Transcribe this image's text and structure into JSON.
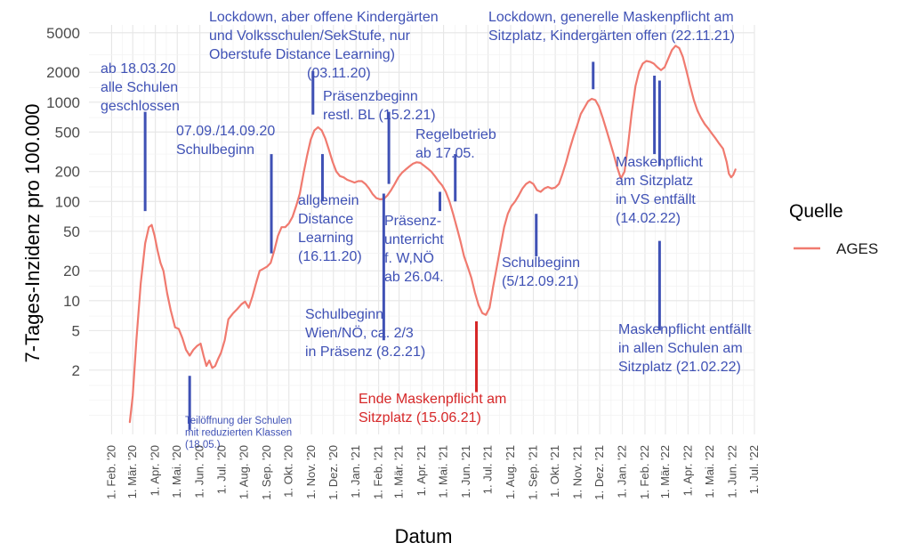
{
  "chart_data": {
    "type": "line",
    "xlabel": "Datum",
    "ylabel": "7-Tages-Inzidenz pro 100.000",
    "y_scale": "log",
    "ylim": [
      0.45,
      6000
    ],
    "xlim": [
      "2020-01-01",
      "2022-07-01"
    ],
    "grid": true,
    "legend": {
      "title": "Quelle",
      "position": "right",
      "entries": [
        "AGES"
      ]
    },
    "y_ticks": [
      {
        "v": 2,
        "label": "2"
      },
      {
        "v": 5,
        "label": "5"
      },
      {
        "v": 10,
        "label": "10"
      },
      {
        "v": 20,
        "label": "20"
      },
      {
        "v": 50,
        "label": "50"
      },
      {
        "v": 100,
        "label": "100"
      },
      {
        "v": 200,
        "label": "200"
      },
      {
        "v": 500,
        "label": "500"
      },
      {
        "v": 1000,
        "label": "1000"
      },
      {
        "v": 2000,
        "label": "2000"
      },
      {
        "v": 5000,
        "label": "5000"
      }
    ],
    "x_ticks": [
      {
        "d": "2020-02-01",
        "label": "1. Feb. '20"
      },
      {
        "d": "2020-03-01",
        "label": "1. Mär. '20"
      },
      {
        "d": "2020-04-01",
        "label": "1. Apr. '20"
      },
      {
        "d": "2020-05-01",
        "label": "1. Mai. '20"
      },
      {
        "d": "2020-06-01",
        "label": "1. Jun. '20"
      },
      {
        "d": "2020-07-01",
        "label": "1. Jul. '20"
      },
      {
        "d": "2020-08-01",
        "label": "1. Aug. '20"
      },
      {
        "d": "2020-09-01",
        "label": "1. Sep. '20"
      },
      {
        "d": "2020-10-01",
        "label": "1. Okt. '20"
      },
      {
        "d": "2020-11-01",
        "label": "1. Nov. '20"
      },
      {
        "d": "2020-12-01",
        "label": "1. Dez. '20"
      },
      {
        "d": "2021-01-01",
        "label": "1. Jan. '21"
      },
      {
        "d": "2021-02-01",
        "label": "1. Feb. '21"
      },
      {
        "d": "2021-03-01",
        "label": "1. Mär. '21"
      },
      {
        "d": "2021-04-01",
        "label": "1. Apr. '21"
      },
      {
        "d": "2021-05-01",
        "label": "1. Mai. '21"
      },
      {
        "d": "2021-06-01",
        "label": "1. Jun. '21"
      },
      {
        "d": "2021-07-01",
        "label": "1. Jul. '21"
      },
      {
        "d": "2021-08-01",
        "label": "1. Aug. '21"
      },
      {
        "d": "2021-09-01",
        "label": "1. Sep. '21"
      },
      {
        "d": "2021-10-01",
        "label": "1. Okt. '21"
      },
      {
        "d": "2021-11-01",
        "label": "1. Nov. '21"
      },
      {
        "d": "2021-12-01",
        "label": "1. Dez. '21"
      },
      {
        "d": "2022-01-01",
        "label": "1. Jan. '22"
      },
      {
        "d": "2022-02-01",
        "label": "1. Feb. '22"
      },
      {
        "d": "2022-03-01",
        "label": "1. Mär. '22"
      },
      {
        "d": "2022-04-01",
        "label": "1. Apr. '22"
      },
      {
        "d": "2022-05-01",
        "label": "1. Mai. '22"
      },
      {
        "d": "2022-06-01",
        "label": "1. Jun. '22"
      },
      {
        "d": "2022-07-01",
        "label": "1. Jul. '22"
      }
    ],
    "series": [
      {
        "name": "AGES",
        "color": "#F07A6F",
        "points": [
          [
            "2020-02-26",
            0.6
          ],
          [
            "2020-03-01",
            1.1
          ],
          [
            "2020-03-06",
            4
          ],
          [
            "2020-03-12",
            15
          ],
          [
            "2020-03-18",
            38
          ],
          [
            "2020-03-23",
            55
          ],
          [
            "2020-03-27",
            58
          ],
          [
            "2020-03-31",
            45
          ],
          [
            "2020-04-04",
            32
          ],
          [
            "2020-04-08",
            24
          ],
          [
            "2020-04-12",
            20
          ],
          [
            "2020-04-17",
            12
          ],
          [
            "2020-04-22",
            8
          ],
          [
            "2020-04-28",
            5.4
          ],
          [
            "2020-05-03",
            5.2
          ],
          [
            "2020-05-08",
            4.2
          ],
          [
            "2020-05-13",
            3.2
          ],
          [
            "2020-05-18",
            2.8
          ],
          [
            "2020-05-23",
            3.2
          ],
          [
            "2020-05-28",
            3.5
          ],
          [
            "2020-06-02",
            3.7
          ],
          [
            "2020-06-06",
            2.8
          ],
          [
            "2020-06-10",
            2.2
          ],
          [
            "2020-06-14",
            2.5
          ],
          [
            "2020-06-18",
            2.1
          ],
          [
            "2020-06-22",
            2.2
          ],
          [
            "2020-06-26",
            2.6
          ],
          [
            "2020-06-30",
            3.0
          ],
          [
            "2020-07-05",
            4.0
          ],
          [
            "2020-07-10",
            6.5
          ],
          [
            "2020-07-16",
            7.4
          ],
          [
            "2020-07-22",
            8.2
          ],
          [
            "2020-07-28",
            9.2
          ],
          [
            "2020-08-02",
            9.8
          ],
          [
            "2020-08-07",
            8.5
          ],
          [
            "2020-08-12",
            11
          ],
          [
            "2020-08-17",
            15
          ],
          [
            "2020-08-22",
            20
          ],
          [
            "2020-08-27",
            21
          ],
          [
            "2020-09-01",
            22
          ],
          [
            "2020-09-06",
            24
          ],
          [
            "2020-09-11",
            32
          ],
          [
            "2020-09-16",
            45
          ],
          [
            "2020-09-21",
            55
          ],
          [
            "2020-09-26",
            55
          ],
          [
            "2020-10-01",
            60
          ],
          [
            "2020-10-06",
            70
          ],
          [
            "2020-10-11",
            90
          ],
          [
            "2020-10-16",
            120
          ],
          [
            "2020-10-21",
            190
          ],
          [
            "2020-10-26",
            290
          ],
          [
            "2020-10-31",
            420
          ],
          [
            "2020-11-05",
            520
          ],
          [
            "2020-11-10",
            560
          ],
          [
            "2020-11-15",
            520
          ],
          [
            "2020-11-20",
            430
          ],
          [
            "2020-11-25",
            330
          ],
          [
            "2020-11-30",
            250
          ],
          [
            "2020-12-05",
            200
          ],
          [
            "2020-12-10",
            180
          ],
          [
            "2020-12-15",
            175
          ],
          [
            "2020-12-20",
            165
          ],
          [
            "2020-12-25",
            160
          ],
          [
            "2020-12-30",
            155
          ],
          [
            "2021-01-04",
            160
          ],
          [
            "2021-01-09",
            160
          ],
          [
            "2021-01-14",
            150
          ],
          [
            "2021-01-19",
            135
          ],
          [
            "2021-01-24",
            118
          ],
          [
            "2021-01-29",
            108
          ],
          [
            "2021-02-03",
            105
          ],
          [
            "2021-02-08",
            106
          ],
          [
            "2021-02-13",
            115
          ],
          [
            "2021-02-18",
            130
          ],
          [
            "2021-02-23",
            150
          ],
          [
            "2021-02-28",
            175
          ],
          [
            "2021-03-05",
            195
          ],
          [
            "2021-03-10",
            210
          ],
          [
            "2021-03-15",
            225
          ],
          [
            "2021-03-20",
            240
          ],
          [
            "2021-03-25",
            248
          ],
          [
            "2021-03-30",
            245
          ],
          [
            "2021-04-04",
            230
          ],
          [
            "2021-04-09",
            215
          ],
          [
            "2021-04-14",
            200
          ],
          [
            "2021-04-19",
            180
          ],
          [
            "2021-04-24",
            160
          ],
          [
            "2021-04-29",
            145
          ],
          [
            "2021-05-04",
            125
          ],
          [
            "2021-05-09",
            100
          ],
          [
            "2021-05-14",
            75
          ],
          [
            "2021-05-19",
            55
          ],
          [
            "2021-05-24",
            40
          ],
          [
            "2021-05-29",
            28
          ],
          [
            "2021-06-03",
            22
          ],
          [
            "2021-06-08",
            17
          ],
          [
            "2021-06-13",
            12
          ],
          [
            "2021-06-18",
            9
          ],
          [
            "2021-06-23",
            7.5
          ],
          [
            "2021-06-28",
            7.2
          ],
          [
            "2021-07-03",
            8.5
          ],
          [
            "2021-07-08",
            14
          ],
          [
            "2021-07-13",
            22
          ],
          [
            "2021-07-18",
            35
          ],
          [
            "2021-07-23",
            55
          ],
          [
            "2021-07-28",
            75
          ],
          [
            "2021-08-02",
            90
          ],
          [
            "2021-08-07",
            100
          ],
          [
            "2021-08-12",
            115
          ],
          [
            "2021-08-17",
            135
          ],
          [
            "2021-08-22",
            150
          ],
          [
            "2021-08-27",
            158
          ],
          [
            "2021-09-01",
            150
          ],
          [
            "2021-09-06",
            130
          ],
          [
            "2021-09-11",
            125
          ],
          [
            "2021-09-16",
            135
          ],
          [
            "2021-09-21",
            140
          ],
          [
            "2021-09-26",
            135
          ],
          [
            "2021-10-01",
            138
          ],
          [
            "2021-10-06",
            150
          ],
          [
            "2021-10-11",
            190
          ],
          [
            "2021-10-16",
            250
          ],
          [
            "2021-10-21",
            340
          ],
          [
            "2021-10-26",
            450
          ],
          [
            "2021-10-31",
            580
          ],
          [
            "2021-11-05",
            760
          ],
          [
            "2021-11-10",
            880
          ],
          [
            "2021-11-15",
            1020
          ],
          [
            "2021-11-20",
            1080
          ],
          [
            "2021-11-25",
            1050
          ],
          [
            "2021-11-30",
            900
          ],
          [
            "2021-12-05",
            700
          ],
          [
            "2021-12-10",
            530
          ],
          [
            "2021-12-15",
            400
          ],
          [
            "2021-12-20",
            300
          ],
          [
            "2021-12-25",
            220
          ],
          [
            "2021-12-30",
            170
          ],
          [
            "2022-01-04",
            200
          ],
          [
            "2022-01-09",
            380
          ],
          [
            "2022-01-14",
            800
          ],
          [
            "2022-01-19",
            1450
          ],
          [
            "2022-01-24",
            2050
          ],
          [
            "2022-01-29",
            2450
          ],
          [
            "2022-02-03",
            2600
          ],
          [
            "2022-02-08",
            2550
          ],
          [
            "2022-02-13",
            2450
          ],
          [
            "2022-02-18",
            2250
          ],
          [
            "2022-02-23",
            2100
          ],
          [
            "2022-02-28",
            2250
          ],
          [
            "2022-03-05",
            2750
          ],
          [
            "2022-03-10",
            3350
          ],
          [
            "2022-03-15",
            3700
          ],
          [
            "2022-03-20",
            3500
          ],
          [
            "2022-03-25",
            2850
          ],
          [
            "2022-03-30",
            2050
          ],
          [
            "2022-04-04",
            1450
          ],
          [
            "2022-04-09",
            1050
          ],
          [
            "2022-04-14",
            820
          ],
          [
            "2022-04-19",
            690
          ],
          [
            "2022-04-24",
            600
          ],
          [
            "2022-04-29",
            540
          ],
          [
            "2022-05-04",
            480
          ],
          [
            "2022-05-09",
            430
          ],
          [
            "2022-05-14",
            380
          ],
          [
            "2022-05-19",
            340
          ],
          [
            "2022-05-24",
            250
          ],
          [
            "2022-05-27",
            190
          ],
          [
            "2022-05-30",
            175
          ],
          [
            "2022-06-02",
            185
          ],
          [
            "2022-06-05",
            210
          ]
        ]
      }
    ],
    "annotations": [
      {
        "kind": "segment",
        "x": "2020-03-18",
        "y1": 80,
        "y2": 800,
        "color": "#3F51B5"
      },
      {
        "kind": "segment",
        "x": "2020-05-18",
        "y1": 0.5,
        "y2": 1.75,
        "color": "#3F51B5"
      },
      {
        "kind": "segment",
        "x": "2020-09-07",
        "y1": 30,
        "y2": 300,
        "color": "#3F51B5"
      },
      {
        "kind": "segment",
        "x": "2020-11-03",
        "y1": 750,
        "y2": 2050,
        "color": "#3F51B5"
      },
      {
        "kind": "segment",
        "x": "2020-11-16",
        "y1": 100,
        "y2": 300,
        "color": "#3F51B5"
      },
      {
        "kind": "segment",
        "x": "2021-02-08",
        "y1": 4,
        "y2": 120,
        "color": "#3F51B5"
      },
      {
        "kind": "segment",
        "x": "2021-02-15",
        "y1": 150,
        "y2": 800,
        "color": "#3F51B5"
      },
      {
        "kind": "segment",
        "x": "2021-04-26",
        "y1": 80,
        "y2": 125,
        "color": "#3F51B5"
      },
      {
        "kind": "segment",
        "x": "2021-05-17",
        "y1": 100,
        "y2": 300,
        "color": "#3F51B5"
      },
      {
        "kind": "segment",
        "x": "2021-06-15",
        "y1": 1.2,
        "y2": 6.2,
        "color": "#D62728"
      },
      {
        "kind": "segment",
        "x": "2021-09-05",
        "y1": 28,
        "y2": 75,
        "color": "#3F51B5"
      },
      {
        "kind": "segment",
        "x": "2021-11-22",
        "y1": 1350,
        "y2": 2550,
        "color": "#3F51B5"
      },
      {
        "kind": "segment",
        "x": "2022-02-14",
        "y1": 300,
        "y2": 1850,
        "color": "#3F51B5"
      },
      {
        "kind": "segment",
        "x": "2022-02-21",
        "y1": 5,
        "y2": 40,
        "color": "#3F51B5"
      },
      {
        "kind": "segment",
        "x": "2022-02-21",
        "y1": 230,
        "y2": 1650,
        "color": "#3F51B5"
      },
      {
        "kind": "text",
        "color": "#3F51B5",
        "lines": [
          "ab 18.03.20",
          "alle Schulen",
          "geschlossen"
        ]
      },
      {
        "kind": "text",
        "color": "#3F51B5",
        "small": true,
        "lines": [
          "Teilöffnung der Schulen",
          "mit reduzierten Klassen",
          "(18.05.)"
        ]
      },
      {
        "kind": "text",
        "color": "#3F51B5",
        "lines": [
          "07.09./14.09.20",
          "Schulbeginn"
        ]
      },
      {
        "kind": "text",
        "color": "#3F51B5",
        "lines": [
          "Lockdown, aber offene Kindergärten",
          "und Volksschulen/SekStufe, nur",
          "Oberstufe Distance Learning)",
          "(03.11.20)"
        ]
      },
      {
        "kind": "text",
        "color": "#3F51B5",
        "lines": [
          "allgemein",
          "Distance",
          "Learning",
          "(16.11.20)"
        ]
      },
      {
        "kind": "text",
        "color": "#3F51B5",
        "lines": [
          "Präsenzbeginn",
          "restl. BL (15.2.21)"
        ]
      },
      {
        "kind": "text",
        "color": "#3F51B5",
        "lines": [
          "Regelbetrieb",
          "ab 17.05."
        ]
      },
      {
        "kind": "text",
        "color": "#3F51B5",
        "lines": [
          "Präsenz-",
          "unterricht",
          "f. W,NÖ",
          "ab 26.04."
        ]
      },
      {
        "kind": "text",
        "color": "#3F51B5",
        "lines": [
          "Schulbeginn",
          "Wien/NÖ, ca. 2/3",
          "in Präsenz (8.2.21)"
        ]
      },
      {
        "kind": "text",
        "color": "#D62728",
        "lines": [
          "Ende Maskenpflicht am",
          "Sitzplatz (15.06.21)"
        ]
      },
      {
        "kind": "text",
        "color": "#3F51B5",
        "lines": [
          "Schulbeginn",
          "(5/12.09.21)"
        ]
      },
      {
        "kind": "text",
        "color": "#3F51B5",
        "lines": [
          "Lockdown, generelle Maskenpflicht am",
          "Sitzplatz, Kindergärten offen (22.11.21)"
        ]
      },
      {
        "kind": "text",
        "color": "#3F51B5",
        "lines": [
          "Maskenpflicht",
          "am Sitzplatz",
          "in VS entfällt",
          "(14.02.22)"
        ]
      },
      {
        "kind": "text",
        "color": "#3F51B5",
        "lines": [
          "Maskenpflicht entfällt",
          "in allen Schulen am",
          "Sitzplatz (21.02.22)"
        ]
      }
    ]
  }
}
